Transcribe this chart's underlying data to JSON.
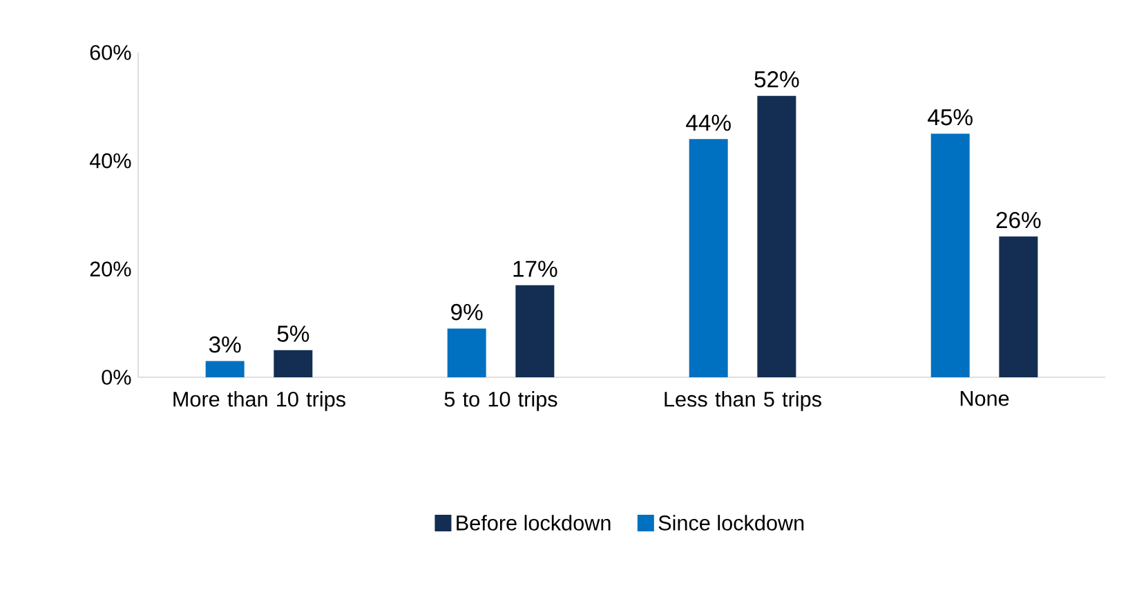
{
  "chart_data": {
    "type": "bar",
    "categories": [
      "More than 10 trips",
      "5 to 10 trips",
      "Less than 5 trips",
      "None"
    ],
    "series": [
      {
        "name": "Since lockdown",
        "color": "#0070c0",
        "values": [
          3,
          9,
          44,
          45
        ],
        "value_labels": [
          "3%",
          "9%",
          "44%",
          "45%"
        ]
      },
      {
        "name": "Before lockdown",
        "color": "#132e52",
        "values": [
          5,
          17,
          52,
          26
        ],
        "value_labels": [
          "5%",
          "17%",
          "52%",
          "26%"
        ]
      }
    ],
    "ylim": [
      0,
      60
    ],
    "yticks": [
      {
        "value": 0,
        "label": "0%"
      },
      {
        "value": 20,
        "label": "20%"
      },
      {
        "value": 40,
        "label": "40%"
      },
      {
        "value": 60,
        "label": "60%"
      }
    ],
    "legend": "bottom"
  }
}
